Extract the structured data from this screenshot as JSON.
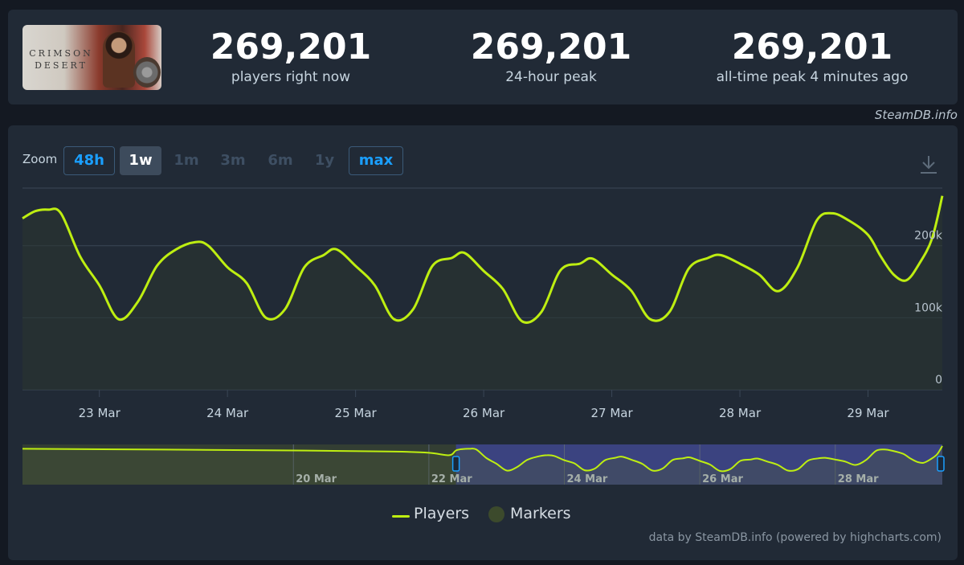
{
  "stats": [
    {
      "value": "269,201",
      "label": "players right now"
    },
    {
      "value": "269,201",
      "label": "24-hour peak"
    },
    {
      "value": "269,201",
      "label": "all-time peak 4 minutes ago"
    }
  ],
  "thumbnail": {
    "logo_text": "CRIMSON DESERT"
  },
  "credit_top": "SteamDB.info",
  "zoom": {
    "label": "Zoom",
    "buttons": [
      "48h",
      "1w",
      "1m",
      "3m",
      "6m",
      "1y",
      "max"
    ],
    "selected": "1w",
    "highlighted": [
      "48h",
      "max"
    ]
  },
  "legend": {
    "players": "Players",
    "markers": "Markers"
  },
  "credit_bottom": "data by SteamDB.info (powered by highcharts.com)",
  "colors": {
    "series": "#beee11",
    "background": "#212a36",
    "accent": "#1a9fff"
  },
  "chart_data": {
    "type": "line",
    "title": "",
    "xlabel": "",
    "ylabel": "",
    "ylim": [
      0,
      280000
    ],
    "yticks": [
      0,
      100000,
      200000
    ],
    "ytick_labels": [
      "0",
      "100k",
      "200k"
    ],
    "xtick_labels": [
      "23 Mar",
      "24 Mar",
      "25 Mar",
      "26 Mar",
      "27 Mar",
      "28 Mar",
      "29 Mar"
    ],
    "grid": true,
    "legend_position": "bottom-center",
    "series": [
      {
        "name": "Players",
        "x": [
          22.4,
          22.5,
          22.6,
          22.7,
          22.85,
          23.0,
          23.15,
          23.3,
          23.45,
          23.6,
          23.75,
          23.85,
          24.0,
          24.15,
          24.3,
          24.45,
          24.6,
          24.75,
          24.85,
          25.0,
          25.15,
          25.3,
          25.45,
          25.6,
          25.75,
          25.85,
          26.0,
          26.15,
          26.3,
          26.45,
          26.6,
          26.75,
          26.85,
          27.0,
          27.15,
          27.3,
          27.45,
          27.6,
          27.75,
          27.85,
          28.0,
          28.15,
          28.3,
          28.45,
          28.6,
          28.72,
          28.85,
          29.0,
          29.1,
          29.2,
          29.3,
          29.4,
          29.5,
          29.58
        ],
        "values": [
          238000,
          248000,
          250000,
          245000,
          185000,
          145000,
          98000,
          122000,
          172000,
          195000,
          205000,
          200000,
          170000,
          148000,
          100000,
          112000,
          170000,
          187000,
          195000,
          172000,
          145000,
          98000,
          112000,
          172000,
          183000,
          190000,
          165000,
          140000,
          95000,
          108000,
          166000,
          175000,
          182000,
          160000,
          138000,
          98000,
          108000,
          168000,
          183000,
          187000,
          175000,
          160000,
          137000,
          170000,
          235000,
          245000,
          235000,
          215000,
          185000,
          160000,
          152000,
          175000,
          210000,
          269201
        ]
      }
    ],
    "navigator": {
      "xtick_labels": [
        "20 Mar",
        "22 Mar",
        "24 Mar",
        "26 Mar",
        "28 Mar"
      ],
      "selected_range": [
        "22 Mar",
        "29 Mar"
      ]
    }
  }
}
